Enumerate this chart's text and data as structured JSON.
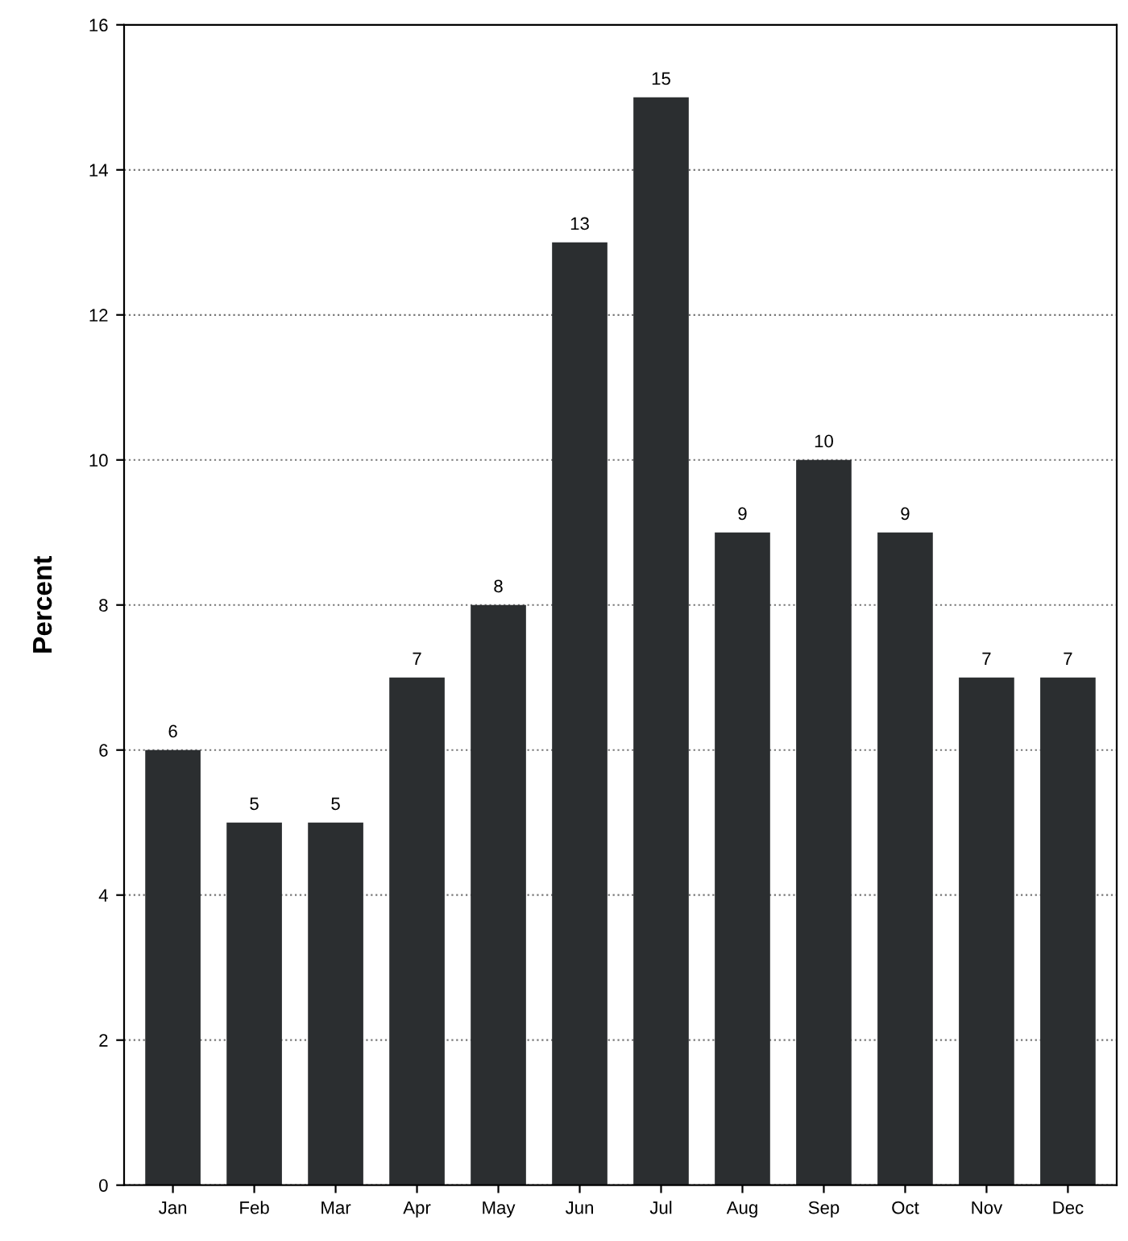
{
  "chart_data": {
    "type": "bar",
    "ylabel": "Percent",
    "categories": [
      "Jan",
      "Feb",
      "Mar",
      "Apr",
      "May",
      "Jun",
      "Jul",
      "Aug",
      "Sep",
      "Oct",
      "Nov",
      "Dec"
    ],
    "values": [
      6,
      5,
      5,
      7,
      8,
      13,
      15,
      9,
      10,
      9,
      7,
      7
    ],
    "color": "#2b2e30",
    "ylim": [
      0,
      16
    ],
    "yticks": [
      0,
      2,
      4,
      6,
      8,
      10,
      12,
      14,
      16
    ],
    "grid": "y",
    "data_labels": true
  }
}
